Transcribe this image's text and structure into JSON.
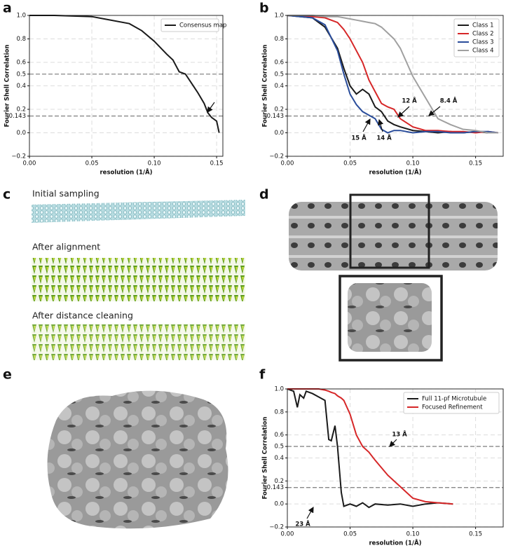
{
  "figure": {
    "panel_labels": [
      "a",
      "b",
      "c",
      "d",
      "e",
      "f"
    ],
    "captions": [
      "Initial sampling",
      "After alignment",
      "After distance cleaning"
    ]
  },
  "chart_data": [
    {
      "type": "line",
      "xlabel": "resolution (1/Å)",
      "ylabel": "Fourier Shell Correlation",
      "x": [
        0,
        0.02,
        0.05,
        0.06,
        0.08,
        0.09,
        0.1,
        0.11,
        0.115,
        0.12,
        0.125,
        0.13,
        0.135,
        0.14,
        0.143,
        0.146,
        0.15,
        0.152
      ],
      "series": [
        {
          "name": "Consensus map",
          "color": "#1a1a1a",
          "values": [
            1,
            1,
            0.99,
            0.97,
            0.93,
            0.87,
            0.78,
            0.67,
            0.62,
            0.52,
            0.5,
            0.42,
            0.34,
            0.25,
            0.17,
            0.13,
            0.1,
            0.0
          ]
        }
      ],
      "xlim": [
        0,
        0.155
      ],
      "ylim": [
        -0.2,
        1.0
      ],
      "xticks": [
        {
          "value": 0,
          "label": "0.00"
        },
        0.05,
        {
          "value": 0.1,
          "label": "0.10"
        },
        0.15
      ],
      "yticks": [
        {
          "value": -0.2,
          "label": "−0.2"
        },
        {
          "value": 0,
          "label": "0.0"
        },
        0.143,
        0.2,
        0.4,
        0.5,
        0.6,
        0.8,
        {
          "value": 1,
          "label": "1.0"
        }
      ],
      "threshold_lines": [
        0.5,
        0.143
      ],
      "grid": true,
      "legend": "upper right",
      "annotations": []
    },
    {
      "type": "line",
      "xlabel": "resolution (1/Å)",
      "ylabel": "Fourier Shell Correlation",
      "x": [
        0,
        0.02,
        0.03,
        0.04,
        0.045,
        0.05,
        0.055,
        0.06,
        0.065,
        0.07,
        0.075,
        0.08,
        0.085,
        0.09,
        0.1,
        0.11,
        0.12,
        0.13,
        0.14,
        0.15,
        0.16,
        0.168
      ],
      "series": [
        {
          "name": "Class 1",
          "color": "#1a1a1a",
          "values": [
            1,
            0.98,
            0.9,
            0.72,
            0.55,
            0.4,
            0.33,
            0.37,
            0.33,
            0.22,
            0.18,
            0.1,
            0.07,
            0.05,
            0.02,
            0.01,
            0.0,
            0.01,
            0.0,
            0.01,
            0.0,
            0.0
          ]
        },
        {
          "name": "Class 2",
          "color": "#d62728",
          "values": [
            1,
            0.99,
            0.98,
            0.94,
            0.88,
            0.8,
            0.7,
            0.6,
            0.45,
            0.35,
            0.25,
            0.22,
            0.2,
            0.12,
            0.05,
            0.02,
            0.02,
            0.01,
            0.01,
            0.0,
            0.01,
            0.0
          ]
        },
        {
          "name": "Class 3",
          "color": "#2a4d9b",
          "values": [
            1,
            0.98,
            0.92,
            0.7,
            0.5,
            0.33,
            0.24,
            0.18,
            0.15,
            0.12,
            0.03,
            0.0,
            0.02,
            0.02,
            0.0,
            0.01,
            0.01,
            0.0,
            0.0,
            0.01,
            0.01,
            0.0
          ]
        },
        {
          "name": "Class 4",
          "color": "#a0a0a0",
          "values": [
            1,
            1,
            0.99,
            0.99,
            0.98,
            0.97,
            0.96,
            0.95,
            0.94,
            0.93,
            0.9,
            0.85,
            0.8,
            0.72,
            0.48,
            0.3,
            0.12,
            0.07,
            0.03,
            0.02,
            0.0,
            0.0
          ]
        }
      ],
      "xlim": [
        0,
        0.172
      ],
      "ylim": [
        -0.2,
        1.0
      ],
      "xticks": [
        {
          "value": 0,
          "label": "0.00"
        },
        0.05,
        {
          "value": 0.1,
          "label": "0.10"
        },
        0.15
      ],
      "yticks": [
        {
          "value": -0.2,
          "label": "−0.2"
        },
        {
          "value": 0,
          "label": "0.0"
        },
        0.143,
        0.2,
        0.4,
        0.5,
        0.6,
        0.8,
        {
          "value": 1,
          "label": "1.0"
        }
      ],
      "threshold_lines": [
        0.5,
        0.143
      ],
      "grid": true,
      "legend": "upper right",
      "annotations": [
        "12 Å",
        "8.4 Å",
        "15 Å",
        "14 Å"
      ]
    },
    {
      "type": "line",
      "xlabel": "resolution (1/Å)",
      "ylabel": "Fourier Shell Correlation",
      "x": [
        0,
        0.005,
        0.008,
        0.01,
        0.013,
        0.015,
        0.02,
        0.025,
        0.03,
        0.033,
        0.035,
        0.038,
        0.04,
        0.043,
        0.045,
        0.05,
        0.055,
        0.06,
        0.065,
        0.07,
        0.08,
        0.09,
        0.1,
        0.11,
        0.12,
        0.132
      ],
      "series": [
        {
          "name": "Full 11-pf Microtubule",
          "color": "#1a1a1a",
          "values": [
            1,
            0.98,
            0.84,
            0.95,
            0.92,
            0.98,
            0.96,
            0.93,
            0.9,
            0.56,
            0.55,
            0.68,
            0.5,
            0.1,
            -0.02,
            0.0,
            -0.02,
            0.01,
            -0.03,
            0.0,
            -0.01,
            0.0,
            -0.02,
            0.0,
            0.01,
            0.0
          ]
        },
        {
          "name": "Focused Refinement",
          "color": "#d62728",
          "values": [
            1,
            1,
            1,
            1,
            1,
            1,
            1,
            1,
            0.99,
            0.98,
            0.97,
            0.96,
            0.94,
            0.92,
            0.9,
            0.78,
            0.6,
            0.5,
            0.45,
            0.38,
            0.25,
            0.15,
            0.05,
            0.02,
            0.01,
            0.0
          ]
        }
      ],
      "xlim": [
        0,
        0.172
      ],
      "ylim": [
        -0.2,
        1.0
      ],
      "xticks": [
        {
          "value": 0,
          "label": "0.00"
        },
        0.05,
        {
          "value": 0.1,
          "label": "0.10"
        },
        0.15
      ],
      "yticks": [
        {
          "value": -0.2,
          "label": "−0.2"
        },
        {
          "value": 0,
          "label": "0.0"
        },
        0.143,
        0.2,
        0.4,
        0.5,
        0.6,
        0.8,
        {
          "value": 1,
          "label": "1.0"
        }
      ],
      "threshold_lines": [
        0.5,
        0.143
      ],
      "grid": true,
      "legend": "upper right",
      "annotations": [
        "13 Å",
        "23 Å"
      ]
    }
  ]
}
